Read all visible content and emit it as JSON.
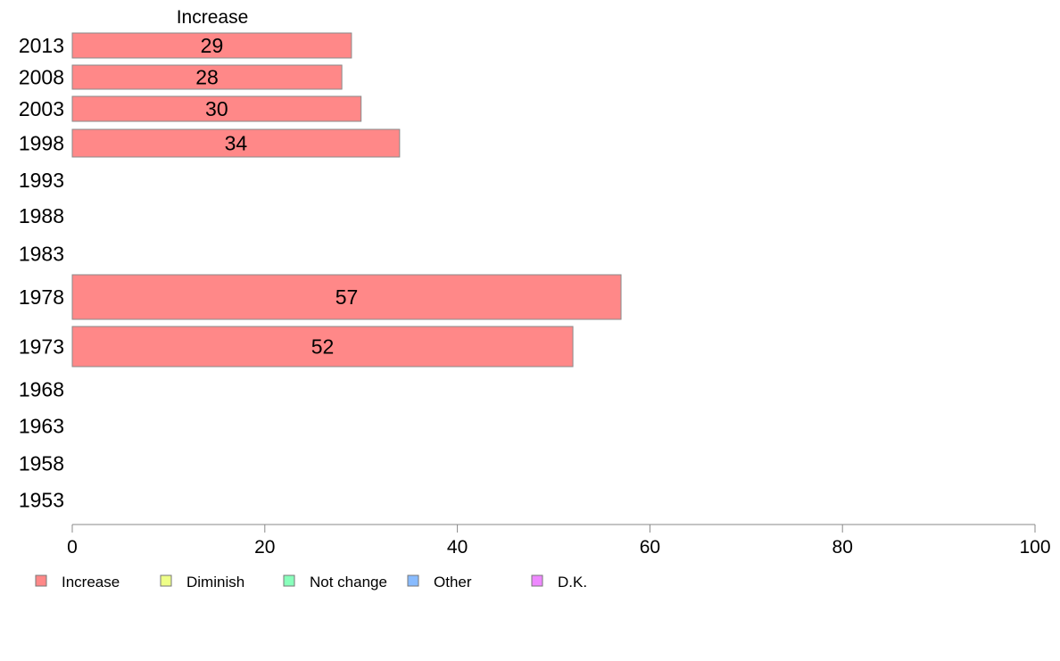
{
  "chart_data": {
    "type": "bar",
    "orientation": "horizontal",
    "title": "Increase",
    "categories": [
      "2013",
      "2008",
      "2003",
      "1998",
      "1993",
      "1988",
      "1983",
      "1978",
      "1973",
      "1968",
      "1963",
      "1958",
      "1953"
    ],
    "series": [
      {
        "name": "Increase",
        "color": "#ff8888",
        "values": [
          29,
          28,
          30,
          34,
          null,
          null,
          null,
          57,
          52,
          null,
          null,
          null,
          null
        ]
      }
    ],
    "data_labels": [
      "29",
      "28",
      "30",
      "34",
      "",
      "",
      "",
      "57",
      "52",
      "",
      "",
      "",
      ""
    ],
    "xlim": [
      0,
      100
    ],
    "xticks": [
      0,
      20,
      40,
      60,
      80,
      100
    ],
    "xlabel": "",
    "ylabel": "",
    "grid": false,
    "legend": {
      "position": "bottom-left",
      "entries": [
        {
          "label": "Increase",
          "color": "#ff8888"
        },
        {
          "label": "Diminish",
          "color": "#eeff88"
        },
        {
          "label": "Not change",
          "color": "#88ffbb"
        },
        {
          "label": "Other",
          "color": "#88bbff"
        },
        {
          "label": "D.K.",
          "color": "#ee88ff"
        }
      ]
    }
  }
}
